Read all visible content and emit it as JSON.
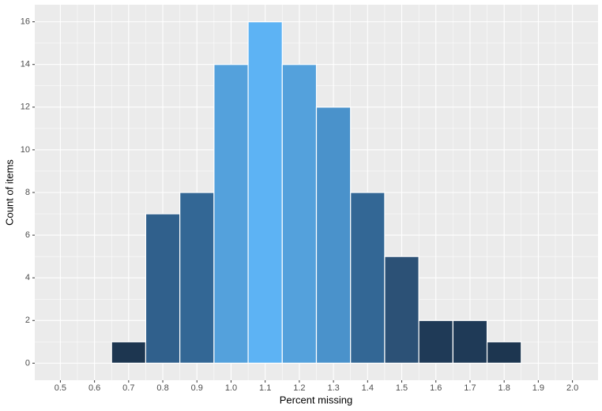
{
  "chart_data": {
    "type": "histogram",
    "x_label": "Percent missing",
    "y_label": "Count of items",
    "bins": [
      0.65,
      0.75,
      0.85,
      0.95,
      1.05,
      1.15,
      1.25,
      1.35,
      1.45,
      1.55,
      1.65,
      1.75,
      1.85
    ],
    "values": [
      1,
      7,
      8,
      14,
      16,
      14,
      12,
      8,
      5,
      2,
      2,
      1
    ],
    "colors": [
      "#1d3650",
      "#30608c",
      "#336795",
      "#54a1dc",
      "#5db3f4",
      "#54a1dc",
      "#4a92cb",
      "#336795",
      "#2c5176",
      "#1f3a57",
      "#1f3a57",
      "#1d3650"
    ],
    "xlim": [
      0.425,
      2.075
    ],
    "ylim": [
      -0.8,
      16.8
    ],
    "xticks": [
      0.5,
      0.6,
      0.7,
      0.8,
      0.9,
      {
        "value": 1,
        "label": "1.0"
      },
      1.1,
      1.2,
      1.3,
      1.4,
      1.5,
      1.6,
      1.7,
      1.8,
      1.9,
      {
        "value": 2,
        "label": "2.0"
      }
    ],
    "yticks": [
      0,
      2,
      4,
      6,
      8,
      10,
      12,
      14,
      16
    ],
    "grid": true
  }
}
